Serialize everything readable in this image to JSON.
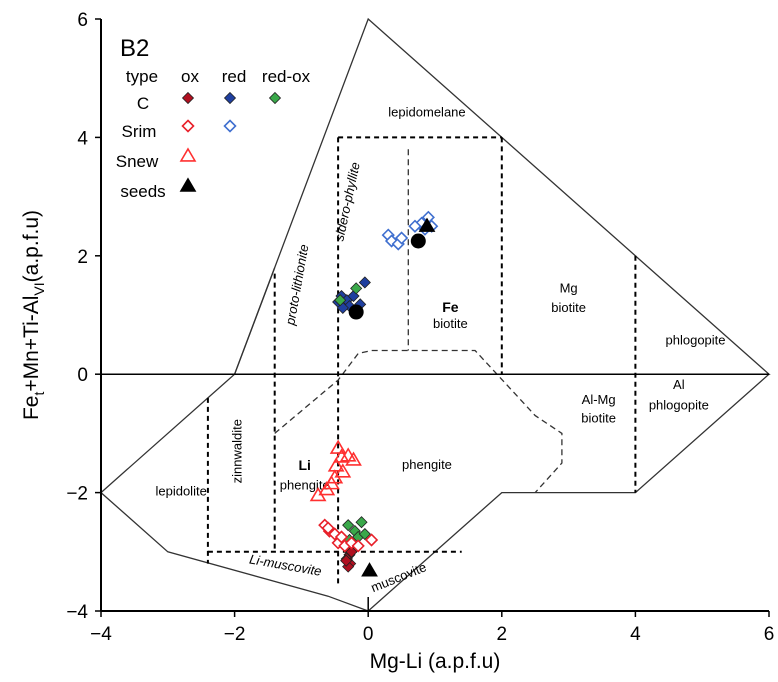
{
  "chart_data": {
    "type": "scatter",
    "panel_label": "B2",
    "xlabel_main": "Mg-Li",
    "xlabel_unit": "(a.p.f.u)",
    "ylabel_main": "Fe",
    "ylabel_sub1": "t",
    "ylabel_mid": "+Mn+Ti-Al",
    "ylabel_sub2": "VI",
    "ylabel_unit": "(a.p.f.u)",
    "xlim": [
      -4,
      6
    ],
    "ylim": [
      -4,
      6
    ],
    "x_ticks": [
      {
        "v": -4,
        "label": "−4"
      },
      {
        "v": -2,
        "label": "−2"
      },
      {
        "v": 0,
        "label": "0"
      },
      {
        "v": 2,
        "label": "2"
      },
      {
        "v": 4,
        "label": "4"
      },
      {
        "v": 6,
        "label": "6"
      }
    ],
    "y_ticks": [
      {
        "v": 6,
        "label": "6"
      },
      {
        "v": 4,
        "label": "4"
      },
      {
        "v": 2,
        "label": "2"
      },
      {
        "v": 0,
        "label": "0"
      },
      {
        "v": -2,
        "label": "−2"
      },
      {
        "v": -4,
        "label": "−4"
      }
    ],
    "field_labels": [
      {
        "text": "lepidomelane",
        "x": 0.88,
        "y": 4.35,
        "style": "normal",
        "rot": 0
      },
      {
        "text": "sidero-phyllite",
        "x": -0.25,
        "y": 2.9,
        "style": "italic",
        "rot": -78
      },
      {
        "text": "proto-lithionite",
        "x": -1.0,
        "y": 1.5,
        "style": "italic",
        "rot": -80
      },
      {
        "text": "Fe",
        "x": 1.23,
        "y": 1.05,
        "style": "bold",
        "rot": 0
      },
      {
        "text": "biotite",
        "x": 1.23,
        "y": 0.78,
        "style": "normal",
        "rot": 0
      },
      {
        "text": "Mg",
        "x": 3.0,
        "y": 1.38,
        "style": "normal",
        "rot": 0
      },
      {
        "text": "biotite",
        "x": 3.0,
        "y": 1.05,
        "style": "normal",
        "rot": 0
      },
      {
        "text": "phlogopite",
        "x": 4.9,
        "y": 0.5,
        "style": "normal",
        "rot": 0
      },
      {
        "text": "Al-Mg",
        "x": 3.45,
        "y": -0.5,
        "style": "normal",
        "rot": 0
      },
      {
        "text": "biotite",
        "x": 3.45,
        "y": -0.82,
        "style": "normal",
        "rot": 0
      },
      {
        "text": "Al",
        "x": 4.65,
        "y": -0.25,
        "style": "normal",
        "rot": 0
      },
      {
        "text": "phlogopite",
        "x": 4.65,
        "y": -0.6,
        "style": "normal",
        "rot": 0
      },
      {
        "text": "zinnwaldite",
        "x": -1.9,
        "y": -1.3,
        "style": "normal",
        "rot": -90
      },
      {
        "text": "Li",
        "x": -0.95,
        "y": -1.62,
        "style": "bold",
        "rot": 0
      },
      {
        "text": "phengite",
        "x": -0.95,
        "y": -1.95,
        "style": "normal",
        "rot": 0
      },
      {
        "text": "phengite",
        "x": 0.88,
        "y": -1.6,
        "style": "normal",
        "rot": 0
      },
      {
        "text": "lepidolite",
        "x": -2.8,
        "y": -2.05,
        "style": "normal",
        "rot": 0
      },
      {
        "text": "Li-muscovite",
        "x": -1.25,
        "y": -3.3,
        "style": "italic",
        "rot": 10
      },
      {
        "text": "muscovite",
        "x": 0.48,
        "y": -3.5,
        "style": "normal",
        "rot": -22
      }
    ],
    "legend": {
      "header": [
        "type",
        "ox",
        "red",
        "red-ox"
      ],
      "rows": [
        "C",
        "Srim",
        "Snew",
        "seeds"
      ]
    },
    "colors": {
      "ox": "#e8202a",
      "ox_dark": "#b01020",
      "red": "#1f3f9f",
      "red_open": "#3f6fcf",
      "redox": "#3aa84a",
      "snew": "#ff3030",
      "seed": "#000000"
    },
    "series": [
      {
        "name": "C ox",
        "marker": "diamond-filled",
        "color": "#b01020",
        "points": [
          [
            -0.3,
            -2.95
          ],
          [
            -0.28,
            -3.05
          ],
          [
            -0.32,
            -3.12
          ],
          [
            -0.27,
            -3.2
          ],
          [
            -0.3,
            -3.25
          ],
          [
            -0.25,
            -3.0
          ],
          [
            -0.33,
            -3.15
          ]
        ]
      },
      {
        "name": "C red",
        "marker": "diamond-filled",
        "color": "#1f3f9f",
        "points": [
          [
            -0.45,
            1.22
          ],
          [
            -0.4,
            1.32
          ],
          [
            -0.32,
            1.25
          ],
          [
            -0.22,
            1.32
          ],
          [
            -0.12,
            1.18
          ],
          [
            -0.05,
            1.55
          ],
          [
            -0.28,
            1.15
          ],
          [
            -0.38,
            1.12
          ]
        ]
      },
      {
        "name": "C red-ox",
        "marker": "diamond-filled",
        "color": "#3aa84a",
        "points": [
          [
            -0.42,
            1.25
          ],
          [
            -0.18,
            1.45
          ],
          [
            -0.3,
            -2.55
          ],
          [
            -0.2,
            -2.65
          ],
          [
            -0.1,
            -2.5
          ],
          [
            -0.28,
            -2.8
          ],
          [
            -0.15,
            -2.75
          ],
          [
            -0.05,
            -2.7
          ]
        ]
      },
      {
        "name": "Srim ox",
        "marker": "diamond-open",
        "color": "#e8202a",
        "points": [
          [
            -0.65,
            -2.55
          ],
          [
            -0.58,
            -2.65
          ],
          [
            -0.5,
            -2.7
          ],
          [
            -0.6,
            -2.6
          ],
          [
            -0.45,
            -2.85
          ],
          [
            -0.35,
            -2.9
          ],
          [
            -0.25,
            -2.85
          ],
          [
            -0.15,
            -2.9
          ],
          [
            0.05,
            -2.8
          ],
          [
            -0.4,
            -2.75
          ]
        ]
      },
      {
        "name": "Srim red",
        "marker": "diamond-open",
        "color": "#3f6fcf",
        "points": [
          [
            0.3,
            2.35
          ],
          [
            0.35,
            2.25
          ],
          [
            0.45,
            2.2
          ],
          [
            0.5,
            2.3
          ],
          [
            0.8,
            2.55
          ],
          [
            0.9,
            2.65
          ],
          [
            0.85,
            2.45
          ],
          [
            0.95,
            2.5
          ],
          [
            0.7,
            2.5
          ]
        ]
      },
      {
        "name": "Snew",
        "marker": "triangle-open",
        "color": "#ff3030",
        "points": [
          [
            -0.45,
            -1.25
          ],
          [
            -0.4,
            -1.4
          ],
          [
            -0.3,
            -1.38
          ],
          [
            -0.22,
            -1.45
          ],
          [
            -0.48,
            -1.55
          ],
          [
            -0.5,
            -1.75
          ],
          [
            -0.55,
            -1.85
          ],
          [
            -0.62,
            -1.95
          ],
          [
            -0.75,
            -2.05
          ],
          [
            -0.38,
            -1.65
          ]
        ]
      },
      {
        "name": "seeds",
        "marker": "triangle-filled",
        "color": "#000000",
        "points": [
          [
            0.88,
            2.5
          ],
          [
            0.02,
            -3.32
          ]
        ]
      },
      {
        "name": "composition",
        "marker": "circle-filled",
        "color": "#000000",
        "points": [
          [
            -0.18,
            1.05
          ],
          [
            0.75,
            2.25
          ]
        ]
      }
    ],
    "grid": false
  }
}
